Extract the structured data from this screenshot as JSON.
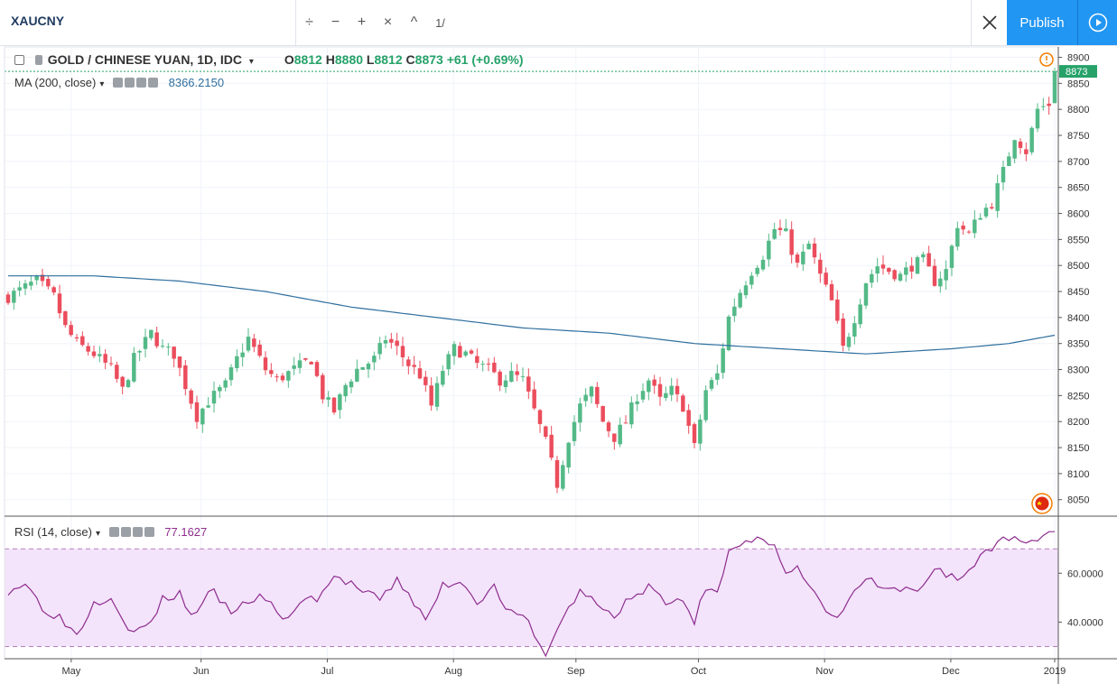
{
  "toolbar": {
    "symbol": "XAUCNY",
    "tools": [
      "÷",
      "−",
      "+",
      "×",
      "^",
      "1/"
    ],
    "publish_label": "Publish"
  },
  "legend": {
    "main_title": "GOLD / CHINESE YUAN, 1D, IDC",
    "open_label": "O",
    "open": "8812",
    "high_label": "H",
    "high": "8880",
    "low_label": "L",
    "low": "8812",
    "close_label": "C",
    "close": "8873",
    "change": "+61 (+0.69%)",
    "ma_label": "MA (200, close)",
    "ma_value": "8366.2150",
    "rsi_label": "RSI (14, close)",
    "rsi_value": "77.1627"
  },
  "colors": {
    "up": "#53b987",
    "down": "#eb4d5c",
    "ma": "#2f6f9f",
    "rsi": "#8e2c8e",
    "rsi_band": "#f3e4fb",
    "accent": "#2196f3"
  },
  "chart_data": [
    {
      "type": "candlestick",
      "title": "GOLD / CHINESE YUAN, 1D, IDC",
      "xlabels": [
        "May",
        "Jun",
        "Jul",
        "Aug",
        "Sep",
        "Oct",
        "Nov",
        "Dec",
        "2019"
      ],
      "yticks": [
        8050,
        8100,
        8150,
        8200,
        8250,
        8300,
        8350,
        8400,
        8450,
        8500,
        8550,
        8600,
        8650,
        8700,
        8750,
        8800,
        8850,
        8900
      ],
      "ylim": [
        8020,
        8920
      ],
      "last_price": 8873,
      "close_path": [
        [
          0,
          8440
        ],
        [
          5,
          8470
        ],
        [
          8,
          8440
        ],
        [
          10,
          8380
        ],
        [
          12,
          8350
        ],
        [
          15,
          8330
        ],
        [
          18,
          8300
        ],
        [
          20,
          8260
        ],
        [
          22,
          8320
        ],
        [
          25,
          8370
        ],
        [
          27,
          8340
        ],
        [
          29,
          8330
        ],
        [
          31,
          8270
        ],
        [
          33,
          8210
        ],
        [
          35,
          8240
        ],
        [
          38,
          8270
        ],
        [
          40,
          8320
        ],
        [
          42,
          8360
        ],
        [
          45,
          8300
        ],
        [
          47,
          8280
        ],
        [
          50,
          8300
        ],
        [
          53,
          8320
        ],
        [
          55,
          8250
        ],
        [
          57,
          8220
        ],
        [
          59,
          8270
        ],
        [
          61,
          8300
        ],
        [
          64,
          8320
        ],
        [
          66,
          8360
        ],
        [
          68,
          8340
        ],
        [
          70,
          8310
        ],
        [
          72,
          8290
        ],
        [
          74,
          8230
        ],
        [
          76,
          8300
        ],
        [
          78,
          8340
        ],
        [
          80,
          8330
        ],
        [
          82,
          8310
        ],
        [
          84,
          8300
        ],
        [
          86,
          8280
        ],
        [
          88,
          8290
        ],
        [
          90,
          8280
        ],
        [
          92,
          8220
        ],
        [
          94,
          8160
        ],
        [
          96,
          8080
        ],
        [
          98,
          8170
        ],
        [
          100,
          8230
        ],
        [
          102,
          8260
        ],
        [
          104,
          8200
        ],
        [
          106,
          8170
        ],
        [
          108,
          8200
        ],
        [
          110,
          8250
        ],
        [
          112,
          8280
        ],
        [
          114,
          8240
        ],
        [
          116,
          8260
        ],
        [
          118,
          8230
        ],
        [
          120,
          8150
        ],
        [
          122,
          8260
        ],
        [
          124,
          8290
        ],
        [
          126,
          8400
        ],
        [
          128,
          8450
        ],
        [
          130,
          8490
        ],
        [
          132,
          8520
        ],
        [
          134,
          8570
        ],
        [
          136,
          8560
        ],
        [
          138,
          8500
        ],
        [
          140,
          8540
        ],
        [
          142,
          8480
        ],
        [
          144,
          8430
        ],
        [
          146,
          8340
        ],
        [
          148,
          8400
        ],
        [
          150,
          8470
        ],
        [
          152,
          8500
        ],
        [
          154,
          8490
        ],
        [
          156,
          8480
        ],
        [
          158,
          8500
        ],
        [
          160,
          8510
        ],
        [
          162,
          8470
        ],
        [
          164,
          8490
        ],
        [
          166,
          8580
        ],
        [
          168,
          8560
        ],
        [
          170,
          8600
        ],
        [
          172,
          8620
        ],
        [
          174,
          8680
        ],
        [
          176,
          8750
        ],
        [
          178,
          8720
        ],
        [
          180,
          8800
        ],
        [
          182,
          8810
        ],
        [
          183,
          8873
        ]
      ],
      "ma_200": [
        [
          0,
          8480
        ],
        [
          15,
          8480
        ],
        [
          30,
          8470
        ],
        [
          45,
          8450
        ],
        [
          60,
          8420
        ],
        [
          75,
          8400
        ],
        [
          90,
          8380
        ],
        [
          105,
          8370
        ],
        [
          120,
          8350
        ],
        [
          135,
          8340
        ],
        [
          150,
          8330
        ],
        [
          165,
          8340
        ],
        [
          175,
          8350
        ],
        [
          183,
          8366
        ]
      ]
    },
    {
      "type": "line",
      "title": "RSI (14, close)",
      "yticks": [
        40.0,
        60.0
      ],
      "ytick_labels": [
        "40.0000",
        "60.0000"
      ],
      "ylim": [
        25,
        83
      ],
      "bands": [
        30,
        70
      ],
      "values": [
        [
          0,
          53
        ],
        [
          3,
          56
        ],
        [
          6,
          46
        ],
        [
          9,
          42
        ],
        [
          12,
          35
        ],
        [
          15,
          48
        ],
        [
          18,
          51
        ],
        [
          20,
          42
        ],
        [
          22,
          35
        ],
        [
          25,
          40
        ],
        [
          27,
          49
        ],
        [
          30,
          52
        ],
        [
          32,
          42
        ],
        [
          34,
          49
        ],
        [
          36,
          52
        ],
        [
          38,
          46
        ],
        [
          40,
          44
        ],
        [
          42,
          49
        ],
        [
          45,
          50
        ],
        [
          48,
          40
        ],
        [
          51,
          48
        ],
        [
          54,
          50
        ],
        [
          57,
          58
        ],
        [
          60,
          56
        ],
        [
          62,
          52
        ],
        [
          65,
          49
        ],
        [
          68,
          57
        ],
        [
          70,
          52
        ],
        [
          73,
          40
        ],
        [
          76,
          55
        ],
        [
          79,
          57
        ],
        [
          82,
          49
        ],
        [
          85,
          54
        ],
        [
          88,
          43
        ],
        [
          90,
          42
        ],
        [
          92,
          36
        ],
        [
          94,
          25
        ],
        [
          96,
          38
        ],
        [
          98,
          45
        ],
        [
          100,
          53
        ],
        [
          103,
          47
        ],
        [
          106,
          42
        ],
        [
          108,
          49
        ],
        [
          110,
          50
        ],
        [
          112,
          55
        ],
        [
          115,
          47
        ],
        [
          118,
          50
        ],
        [
          120,
          40
        ],
        [
          122,
          55
        ],
        [
          124,
          54
        ],
        [
          126,
          68
        ],
        [
          128,
          71
        ],
        [
          130,
          72
        ],
        [
          132,
          74
        ],
        [
          134,
          73
        ],
        [
          136,
          60
        ],
        [
          138,
          62
        ],
        [
          140,
          54
        ],
        [
          142,
          48
        ],
        [
          144,
          41
        ],
        [
          146,
          45
        ],
        [
          148,
          52
        ],
        [
          150,
          58
        ],
        [
          152,
          55
        ],
        [
          154,
          52
        ],
        [
          156,
          53
        ],
        [
          158,
          52
        ],
        [
          160,
          54
        ],
        [
          162,
          63
        ],
        [
          164,
          60
        ],
        [
          166,
          58
        ],
        [
          168,
          60
        ],
        [
          170,
          68
        ],
        [
          172,
          70
        ],
        [
          174,
          76
        ],
        [
          176,
          74
        ],
        [
          178,
          73
        ],
        [
          180,
          75
        ],
        [
          182,
          77
        ]
      ]
    }
  ]
}
